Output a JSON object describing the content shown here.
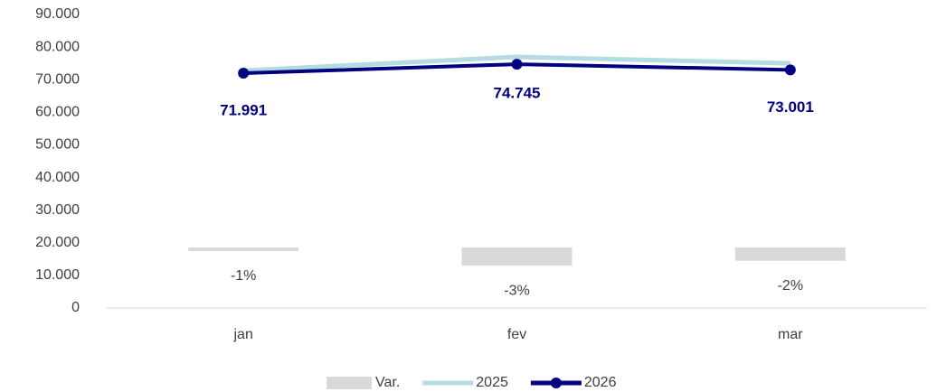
{
  "chart_data": {
    "type": "combo",
    "categories": [
      "jan",
      "fev",
      "mar"
    ],
    "ylim": [
      0,
      90000
    ],
    "yticks": [
      {
        "value": 0,
        "label": "0"
      },
      {
        "value": 10000,
        "label": "10.000"
      },
      {
        "value": 20000,
        "label": "20.000"
      },
      {
        "value": 30000,
        "label": "30.000"
      },
      {
        "value": 40000,
        "label": "40.000"
      },
      {
        "value": 50000,
        "label": "50.000"
      },
      {
        "value": 60000,
        "label": "60.000"
      },
      {
        "value": 70000,
        "label": "70.000"
      },
      {
        "value": 80000,
        "label": "80.000"
      },
      {
        "value": 90000,
        "label": "90.000"
      }
    ],
    "y2lim": [
      -10,
      38.5
    ],
    "legend": "bottom",
    "series": [
      {
        "name": "Var.",
        "type": "bar",
        "axis": "y2",
        "color": "#d9d9d9",
        "values": [
          -0.6,
          -3.0,
          -2.2
        ],
        "value_labels": [
          "-1%",
          "-3%",
          "-2%"
        ]
      },
      {
        "name": "2025",
        "type": "line",
        "color": "#b4dde3",
        "values": [
          72800,
          77000,
          75000
        ]
      },
      {
        "name": "2026",
        "type": "line",
        "color": "#000080",
        "marker": true,
        "values": [
          71991,
          74745,
          73001
        ],
        "value_labels": [
          "71.991",
          "74.745",
          "73.001"
        ]
      }
    ]
  }
}
